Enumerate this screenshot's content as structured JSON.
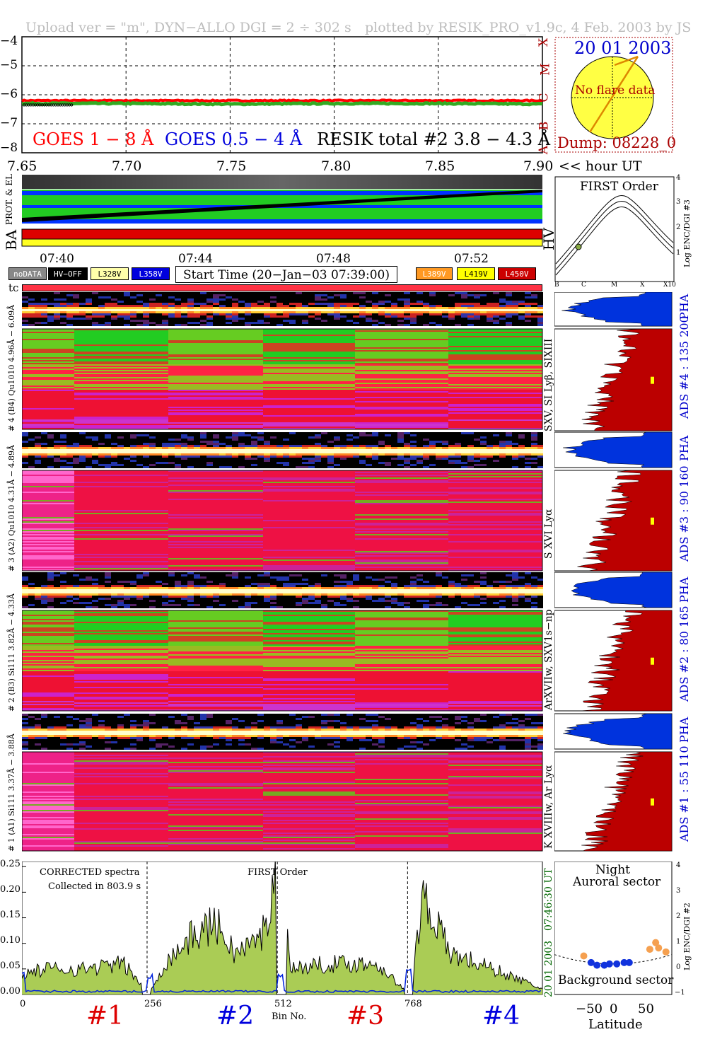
{
  "header": {
    "left": "Upload ver = \"m\", DYN−ALLO DGI =   2 ÷ 302 s",
    "right": "plotted by RESIK_PRO_v1.9c, 4 Feb. 2003 by JS"
  },
  "goes": {
    "y_ticks": [
      "−4",
      "−5",
      "−6",
      "−7",
      "−8"
    ],
    "x_ticks": [
      "7.65",
      "7.70",
      "7.75",
      "7.80",
      "7.85",
      "7.90"
    ],
    "x_unit": "<< hour UT",
    "flare_classes": [
      "X",
      "M",
      "C",
      "B",
      "A"
    ],
    "legend": {
      "goes_1_8": "GOES 1 − 8 Å",
      "goes_05_4": "GOES 0.5 − 4 Å",
      "resik": "RESIK total #2  3.8 − 4.3 Å"
    },
    "colors": {
      "goes_1_8": "#ff0000",
      "goes_05_4": "#0000dd",
      "resik": "#33aa22"
    }
  },
  "sun": {
    "date": "20 01 2003",
    "message": "No flare data",
    "dump": "Dump: 08228_0"
  },
  "status": {
    "labels": [
      "PROT. & EL",
      "BA",
      "HV"
    ],
    "time_ticks": [
      "07:40",
      "07:44",
      "07:48",
      "07:52"
    ],
    "start_time": "Start Time (20−Jan−03 07:39:00)",
    "boxes": [
      {
        "label": "noDATA",
        "bg": "#888888",
        "fg": "#ffffff"
      },
      {
        "label": "HV−OFF",
        "bg": "#000000",
        "fg": "#ffffff"
      },
      {
        "label": "L328V",
        "bg": "#ffffaa",
        "fg": "#000000"
      },
      {
        "label": "L358V",
        "bg": "#0000dd",
        "fg": "#ffffff"
      },
      {
        "label": "L389V",
        "bg": "#ff9922",
        "fg": "#ffffff"
      },
      {
        "label": "L419V",
        "bg": "#ffff00",
        "fg": "#000000"
      },
      {
        "label": "L450V",
        "bg": "#cc0000",
        "fg": "#ffffff"
      }
    ]
  },
  "first_order": {
    "title": "FIRST Order",
    "ylabel": "Log ENC/DGI #3",
    "y_ticks": [
      "1",
      "2",
      "3",
      "4"
    ],
    "x_ticks": [
      "B",
      "C",
      "M",
      "X",
      "X10"
    ]
  },
  "channels": [
    {
      "side": "# 4 (B4) Qu1010  4.96Å − 6.09Å",
      "ion": "SXV, SI Lyβ, SIXIII",
      "ads": "ADS #4 :   135 200",
      "pha": "PHA"
    },
    {
      "side": "# 3 (A2) Qu1010  4.31Å − 4.89Å",
      "ion": "S XVI Lyα",
      "ads": "ADS #3 :   90 160",
      "pha": "PHA"
    },
    {
      "side": "# 2 (B3) Si111  3.82Å − 4.33Å",
      "ion": "ArXVIIw, SXV1s−np",
      "ads": "ADS #2 :   80 165",
      "pha": "PHA"
    },
    {
      "side": "# 1 (A1) Si111  3.37Å − 3.88Å",
      "ion": "K XVIIIw, Ar Lyα",
      "ads": "ADS #1 :   55 110",
      "pha": "PHA"
    }
  ],
  "tc_label": "tc",
  "spectra": {
    "title": "CORRECTED spectra",
    "collected": "Collected in   803.9 s",
    "first_order": "FIRST Order",
    "y_ticks": [
      "0.00",
      "0.05",
      "0.10",
      "0.15",
      "0.20",
      "0.25"
    ],
    "x_ticks": [
      "0",
      "256",
      "512",
      "768"
    ],
    "xlabel": "Bin No.",
    "right_label_1": "07:46:30 UT",
    "right_label_2": "20 01 2003",
    "segments": [
      {
        "label": "#1",
        "color": "#dd0000"
      },
      {
        "label": "#2",
        "color": "#0000dd"
      },
      {
        "label": "#3",
        "color": "#dd0000"
      },
      {
        "label": "#4",
        "color": "#0000dd"
      }
    ]
  },
  "latitude": {
    "night": "Night",
    "auroral": "Auroral sector",
    "background": "Background sector",
    "xlabel": "Latitude",
    "x_ticks": [
      "−50",
      "0",
      "50"
    ],
    "y_ticks": [
      "−1",
      "0",
      "1",
      "2",
      "3",
      "4"
    ],
    "ylabel": "Log ENC/DGI #2"
  },
  "chart_data": [
    {
      "type": "line",
      "title": "",
      "xlabel": "<< hour UT",
      "xlim": [
        7.65,
        7.9
      ],
      "ylim": [
        -8,
        -4
      ],
      "series": [
        {
          "name": "GOES 1 − 8 Å",
          "x": [
            7.65,
            7.7,
            7.75,
            7.8,
            7.85,
            7.9
          ],
          "values": [
            -6.2,
            -6.2,
            -6.2,
            -6.2,
            -6.2,
            -6.2
          ]
        },
        {
          "name": "RESIK total #2  3.8 − 4.3 Å",
          "x": [
            7.65,
            7.7,
            7.75,
            7.8,
            7.85,
            7.9
          ],
          "values": [
            -6.3,
            -6.3,
            -6.32,
            -6.3,
            -6.3,
            -6.32
          ]
        }
      ]
    },
    {
      "type": "line",
      "title": "CORRECTED spectra",
      "xlabel": "Bin No.",
      "xlim": [
        0,
        1023
      ],
      "ylim": [
        0,
        0.26
      ],
      "series": [
        {
          "name": "",
          "x": [
            0,
            50,
            120,
            200,
            250,
            280,
            330,
            380,
            420,
            470,
            505,
            530,
            600,
            700,
            760,
            790,
            840,
            900,
            1000
          ],
          "values": [
            0.04,
            0.05,
            0.05,
            0.06,
            0.0,
            0.06,
            0.11,
            0.14,
            0.08,
            0.11,
            0.24,
            0.05,
            0.06,
            0.06,
            0.0,
            0.2,
            0.08,
            0.06,
            0.02
          ]
        }
      ]
    },
    {
      "type": "scatter",
      "title": "",
      "xlabel": "Latitude",
      "xlim": [
        -80,
        80
      ],
      "ylim": [
        -1,
        4
      ],
      "series": [
        {
          "name": "Background sector",
          "x": [
            -30,
            -22,
            -12,
            -5,
            5,
            15,
            22
          ],
          "values": [
            0.2,
            0.1,
            0.1,
            0.15,
            0.15,
            0.2,
            0.2
          ]
        },
        {
          "name": "Auroral sector",
          "x": [
            -40,
            50,
            58,
            62,
            72
          ],
          "values": [
            0.45,
            0.7,
            0.95,
            0.75,
            0.6
          ]
        }
      ]
    }
  ]
}
